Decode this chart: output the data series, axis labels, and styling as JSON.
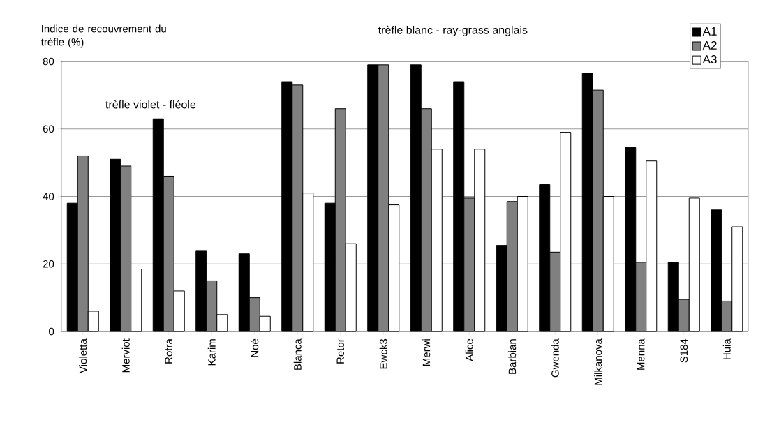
{
  "chart_data": {
    "type": "bar",
    "ylabel": "Indice de recouvrement du trèfle (%)",
    "annotations": [
      "trèfle violet - fléole",
      "trèfle blanc - ray-grass anglais"
    ],
    "categories": [
      "Violetta",
      "Merviot",
      "Rotra",
      "Karim",
      "Noé",
      "Blanca",
      "Retor",
      "Ewck3",
      "Merwi",
      "Alice",
      "Barbian",
      "Gwenda",
      "Milkanova",
      "Menna",
      "S184",
      "Huia"
    ],
    "series": [
      {
        "name": "A1",
        "color": "#000000",
        "values": [
          38,
          51,
          63,
          24,
          23,
          74,
          38,
          79,
          79,
          74,
          25.5,
          43.5,
          76.5,
          54.5,
          20.5,
          36
        ]
      },
      {
        "name": "A2",
        "color": "#808080",
        "values": [
          52,
          49,
          46,
          15,
          10,
          73,
          66,
          79,
          66,
          39.5,
          38.5,
          23.5,
          71.5,
          20.5,
          9.5,
          9
        ]
      },
      {
        "name": "A3",
        "color": "#ffffff",
        "values": [
          6,
          18.5,
          12,
          5,
          4.5,
          41,
          26,
          37.5,
          54,
          54,
          40,
          59,
          40,
          50.5,
          39.5,
          31
        ]
      }
    ],
    "ylim": [
      0,
      80
    ],
    "yticks": [
      0,
      20,
      40,
      60,
      80
    ],
    "grid": "y",
    "legend": "top right"
  }
}
